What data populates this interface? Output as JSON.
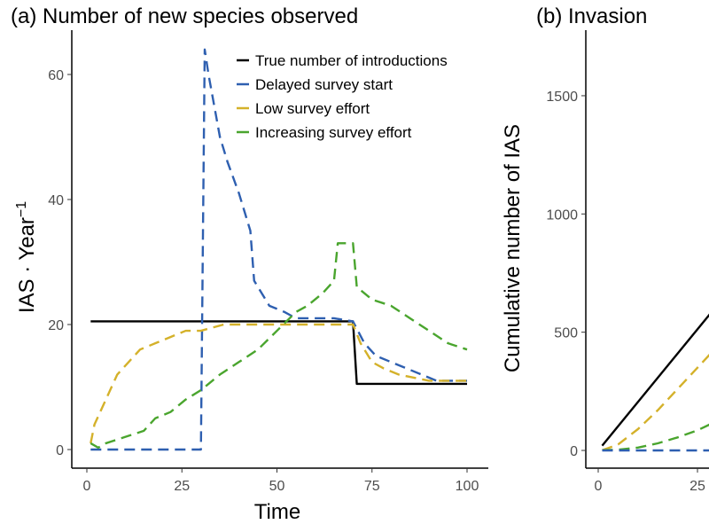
{
  "chart_data": [
    {
      "type": "line",
      "title": "(a)  Number of new species observed",
      "xlabel": "Time",
      "ylabel": "IAS · Year",
      "ylabel_superscript": "−1",
      "xlim": [
        -3,
        103
      ],
      "ylim": [
        -2,
        67
      ],
      "xticks": [
        "0",
        "25",
        "50",
        "75",
        "100"
      ],
      "yticks": [
        "0",
        "20",
        "40",
        "60"
      ],
      "grid": false,
      "legend": "top-right",
      "series": [
        {
          "name": "True number of introductions",
          "color": "#000000",
          "dash": "solid",
          "x": [
            1,
            70,
            71,
            100
          ],
          "y": [
            20.5,
            20.5,
            10.5,
            10.5
          ]
        },
        {
          "name": "Delayed survey start",
          "color": "#2e5fb0",
          "dash": "dashed",
          "x": [
            1,
            30,
            31,
            32,
            35,
            37,
            40,
            43,
            44,
            46,
            48,
            52,
            55,
            65,
            70,
            73,
            76,
            80,
            84,
            88,
            92,
            100
          ],
          "y": [
            0,
            0,
            64,
            60,
            50,
            46,
            41,
            35,
            27,
            25,
            23,
            22,
            21,
            21,
            20.5,
            17,
            15,
            14,
            13,
            12,
            11,
            11
          ]
        },
        {
          "name": "Low survey effort",
          "color": "#d4b12a",
          "dash": "dashed",
          "x": [
            1,
            2,
            5,
            8,
            11,
            14,
            18,
            22,
            26,
            30,
            36,
            70,
            72,
            75,
            78,
            82,
            86,
            90,
            100
          ],
          "y": [
            1,
            4,
            8,
            12,
            14,
            16,
            17,
            18,
            19,
            19,
            20,
            20,
            17,
            14,
            13,
            12,
            11.5,
            11,
            11
          ]
        },
        {
          "name": "Increasing survey effort",
          "color": "#4aa52e",
          "dash": "dashed",
          "x": [
            1,
            3,
            5,
            10,
            15,
            18,
            22,
            26,
            30,
            35,
            40,
            45,
            50,
            55,
            58,
            62,
            65,
            66,
            70,
            71,
            75,
            80,
            85,
            90,
            95,
            100
          ],
          "y": [
            1,
            0.3,
            1,
            2,
            3,
            5,
            6,
            8,
            9.5,
            12,
            14,
            16,
            19,
            22,
            23,
            25,
            27,
            33,
            33,
            26,
            24,
            23,
            21,
            19,
            17,
            16
          ]
        }
      ]
    },
    {
      "type": "line",
      "title": "(b)  Invasion",
      "ylabel": "Cumulative number of IAS",
      "xlim": [
        -3,
        103
      ],
      "ylim": [
        -60,
        1750
      ],
      "xticks": [
        "0",
        "25"
      ],
      "yticks": [
        "0",
        "500",
        "1000",
        "1500"
      ],
      "grid": false,
      "series": [
        {
          "color": "#000000",
          "dash": "solid",
          "x": [
            1,
            30
          ],
          "y": [
            20,
            615
          ]
        },
        {
          "color": "#d4b12a",
          "dash": "dashed",
          "x": [
            1,
            5,
            10,
            15,
            20,
            25,
            30
          ],
          "y": [
            1,
            25,
            90,
            170,
            260,
            350,
            440
          ]
        },
        {
          "color": "#4aa52e",
          "dash": "dashed",
          "x": [
            1,
            5,
            10,
            15,
            20,
            25,
            30
          ],
          "y": [
            1,
            3,
            12,
            30,
            55,
            85,
            125
          ]
        },
        {
          "color": "#2e5fb0",
          "dash": "dashed",
          "x": [
            1,
            30
          ],
          "y": [
            0,
            0
          ]
        }
      ]
    }
  ]
}
